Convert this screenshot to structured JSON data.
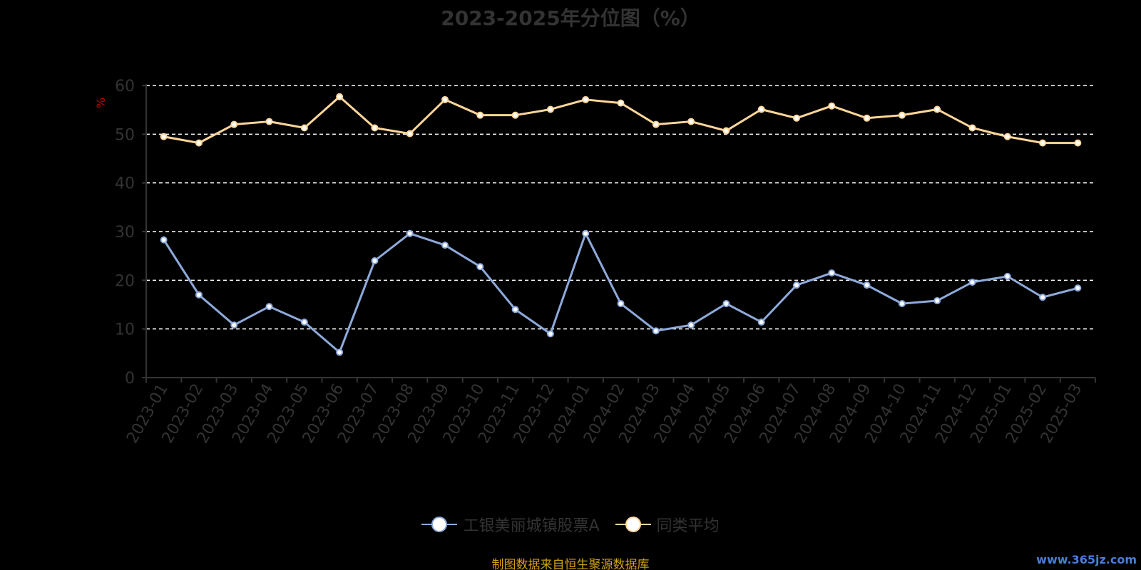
{
  "chart_data": {
    "type": "line",
    "title": "2023-2025年分位图（%）",
    "ylabel": "%",
    "xlabel": "",
    "ylim": [
      0,
      60
    ],
    "yticks": [
      0,
      10,
      20,
      30,
      40,
      50,
      60
    ],
    "grid": true,
    "legend_position": "bottom-center",
    "categories": [
      "2023-01",
      "2023-02",
      "2023-03",
      "2023-04",
      "2023-05",
      "2023-06",
      "2023-07",
      "2023-08",
      "2023-09",
      "2023-10",
      "2023-11",
      "2023-12",
      "2024-01",
      "2024-02",
      "2024-03",
      "2024-04",
      "2024-05",
      "2024-06",
      "2024-07",
      "2024-08",
      "2024-09",
      "2024-10",
      "2024-11",
      "2024-12",
      "2025-01",
      "2025-02",
      "2025-03"
    ],
    "series": [
      {
        "name": "工银美丽城镇股票A",
        "color": "#8eaadb",
        "values": [
          28.3,
          17.0,
          10.8,
          14.6,
          11.4,
          5.2,
          24.0,
          29.6,
          27.2,
          22.8,
          14.0,
          9.0,
          29.6,
          15.2,
          9.6,
          10.8,
          15.2,
          11.4,
          19.0,
          21.5,
          19.0,
          15.2,
          15.8,
          19.6,
          20.8,
          16.5,
          18.4
        ]
      },
      {
        "name": "同类平均",
        "color": "#ffd699",
        "values": [
          49.5,
          48.2,
          52.0,
          52.6,
          51.3,
          57.7,
          51.3,
          50.1,
          57.1,
          53.9,
          53.9,
          55.1,
          57.1,
          56.4,
          52.0,
          52.6,
          50.7,
          55.1,
          53.3,
          55.8,
          53.3,
          53.9,
          55.1,
          51.3,
          49.5,
          48.2,
          48.2
        ]
      }
    ]
  },
  "source_note": "制图数据来自恒生聚源数据库",
  "watermark": "www.365jz.com",
  "colors": {
    "axis": "#333333",
    "grid": "#ffffff",
    "tick_text": "#333333",
    "unit_text": "#c00000",
    "source_text": "#d4a017",
    "watermark": "#4a7fd4"
  }
}
